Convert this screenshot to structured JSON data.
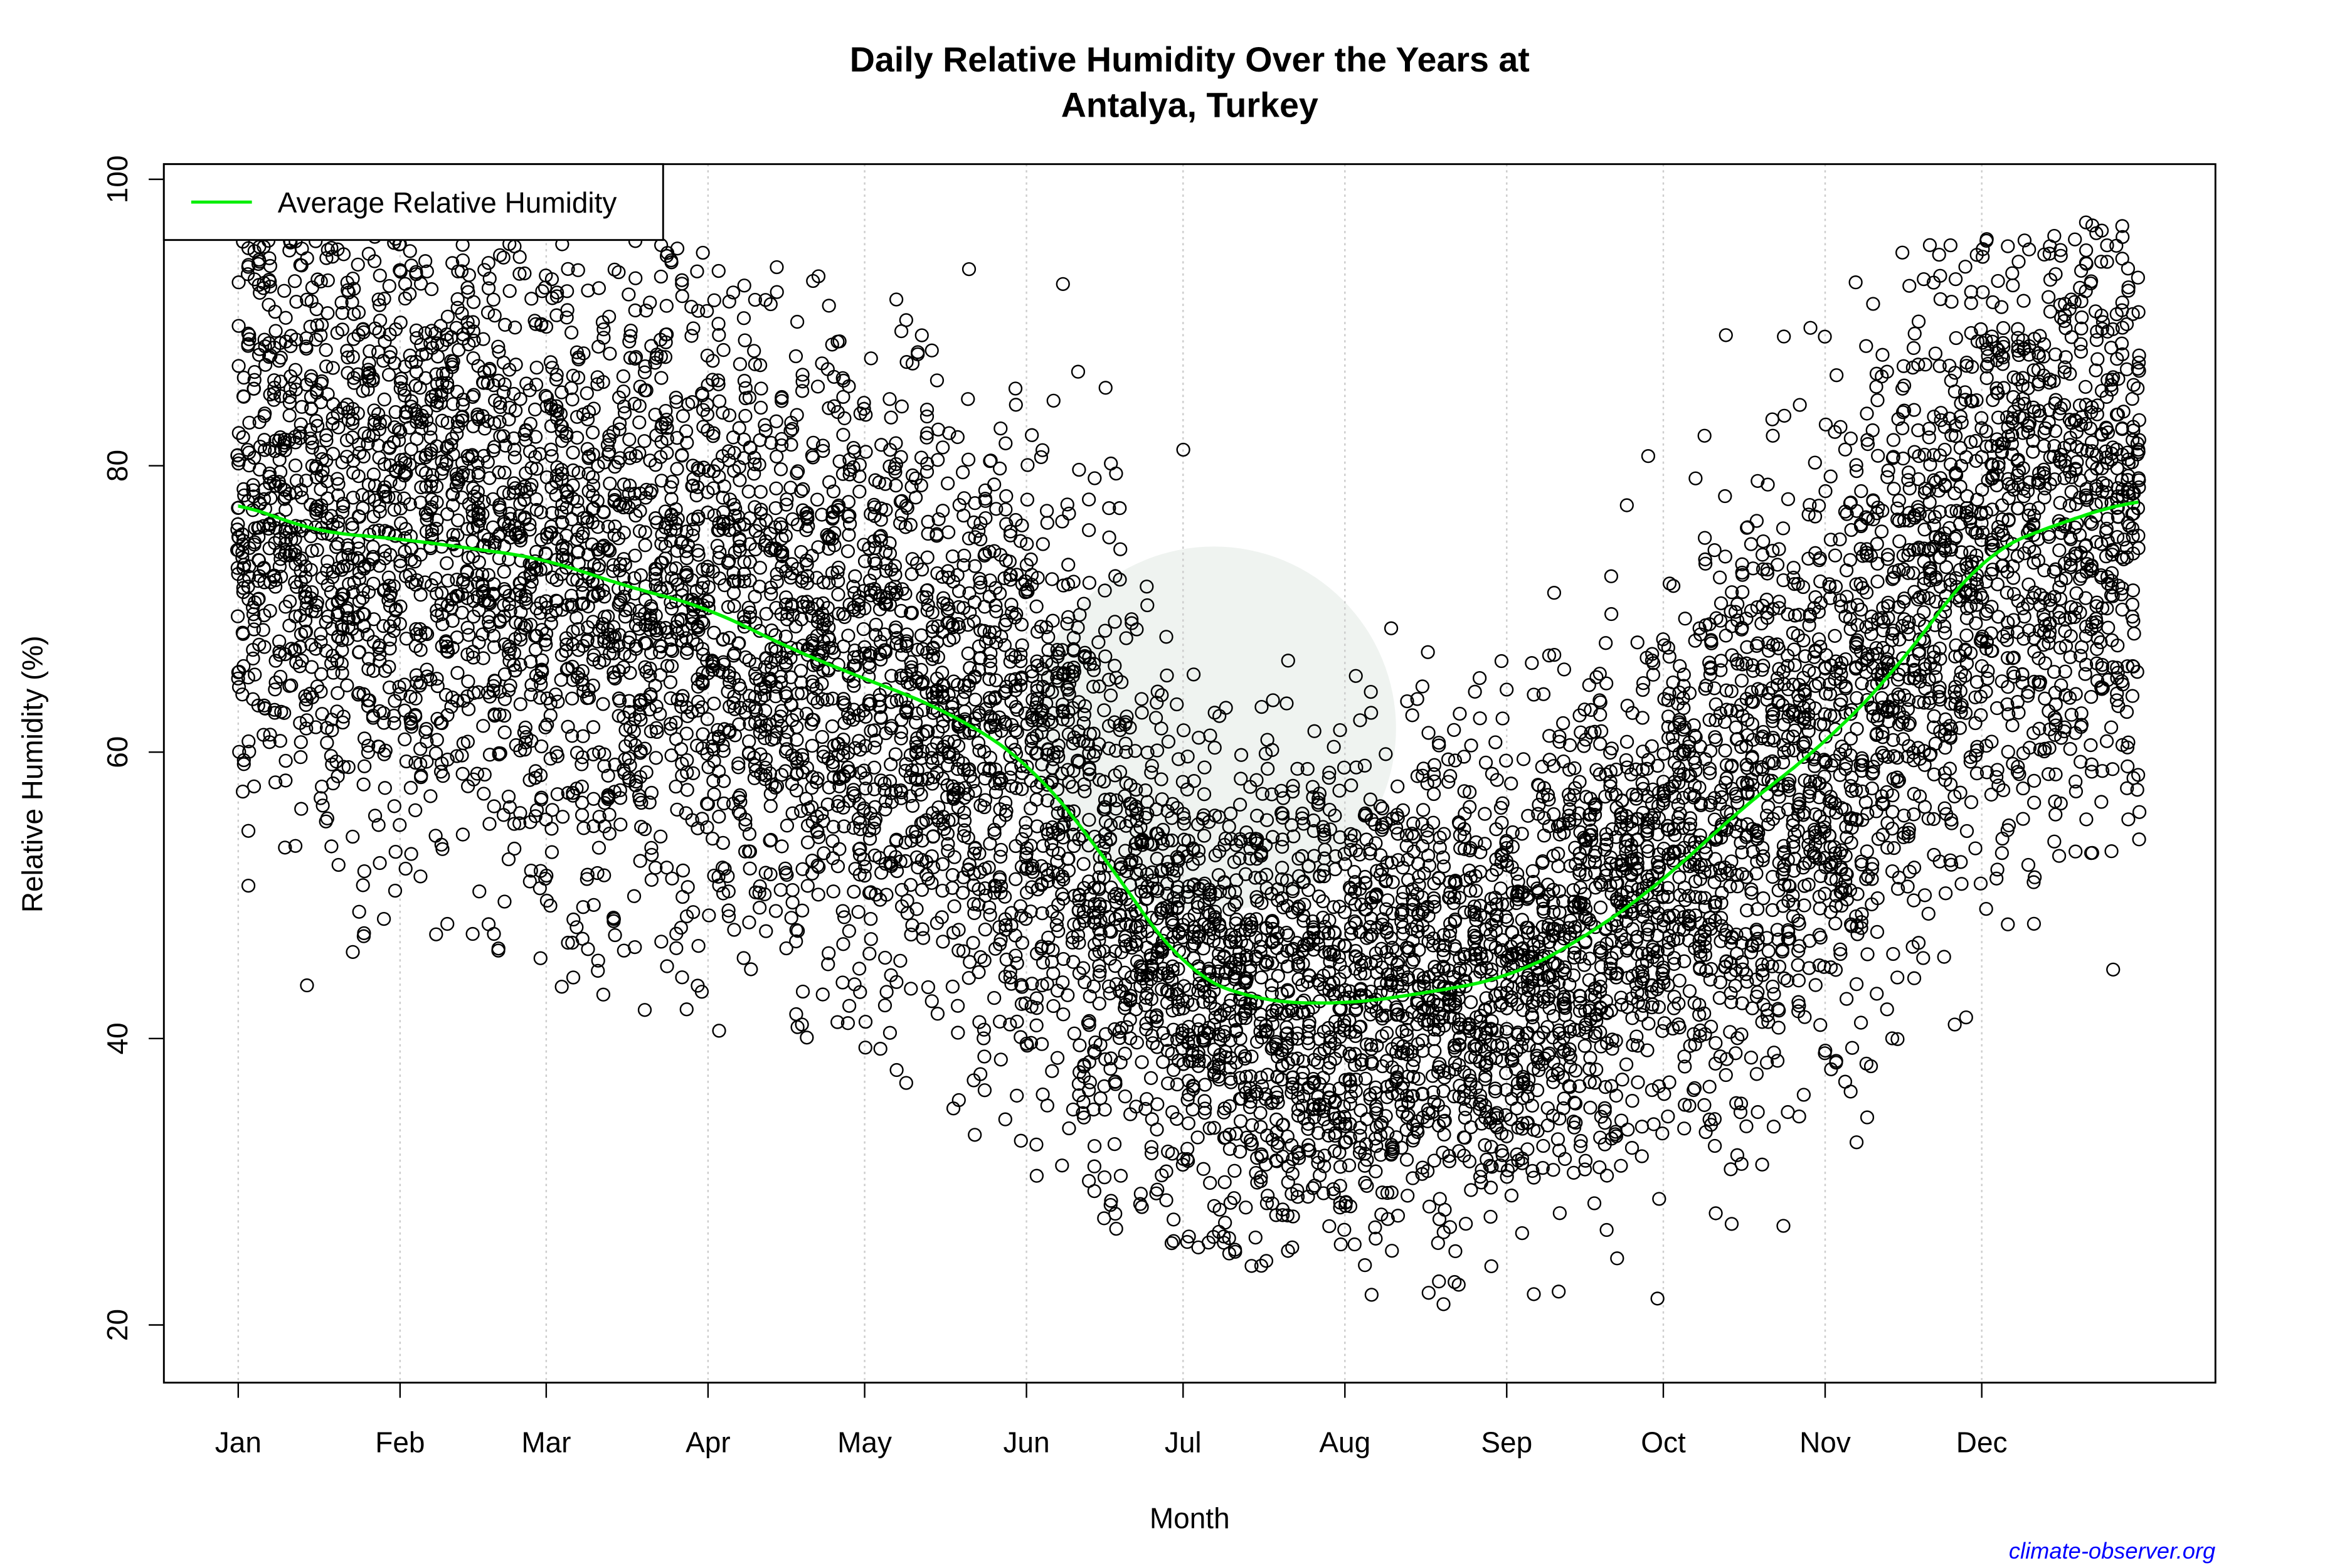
{
  "chart_data": {
    "type": "scatter",
    "title": "Daily Relative Humidity Over the Years at",
    "subtitle": "Antalya, Turkey",
    "xlabel": "Month",
    "ylabel": "Relative Humidity  (%)",
    "ylim": [
      20,
      100
    ],
    "yticks": [
      20,
      40,
      60,
      80,
      100
    ],
    "xticks": [
      {
        "label": "Jan",
        "day": 1
      },
      {
        "label": "Feb",
        "day": 32
      },
      {
        "label": "Mar",
        "day": 60
      },
      {
        "label": "Apr",
        "day": 91
      },
      {
        "label": "May",
        "day": 121
      },
      {
        "label": "Jun",
        "day": 152
      },
      {
        "label": "Jul",
        "day": 182
      },
      {
        "label": "Aug",
        "day": 213
      },
      {
        "label": "Sep",
        "day": 244
      },
      {
        "label": "Oct",
        "day": 274
      },
      {
        "label": "Nov",
        "day": 305
      },
      {
        "label": "Dec",
        "day": 335
      }
    ],
    "grid": "vertical dotted at month ticks",
    "legend": {
      "position": "top-left",
      "entries": [
        {
          "name": "Average Relative Humidity",
          "color": "#00ee00"
        }
      ]
    },
    "average_series": {
      "name": "Average Relative Humidity",
      "color": "#00ee00",
      "day": [
        1,
        15,
        32,
        60,
        74,
        91,
        105,
        121,
        135,
        152,
        166,
        182,
        196,
        213,
        227,
        244,
        258,
        274,
        288,
        305,
        319,
        335,
        349,
        365
      ],
      "value": [
        77.5,
        75.4,
        74.9,
        73.5,
        71.7,
        70.1,
        67.5,
        65.1,
        63.2,
        59.5,
        53.2,
        44.7,
        42.6,
        42.4,
        43.1,
        44.2,
        46.8,
        51.0,
        55.8,
        60.6,
        65.9,
        73.8,
        75.9,
        77.7
      ]
    },
    "scatter_monthly_range": {
      "months": [
        "Jan",
        "Feb",
        "Mar",
        "Apr",
        "May",
        "Jun",
        "Jul",
        "Aug",
        "Sep",
        "Oct",
        "Nov",
        "Dec"
      ],
      "min": [
        43,
        47,
        38,
        40,
        35,
        27,
        24,
        21,
        21,
        19,
        29,
        38
      ],
      "max": [
        96,
        96,
        96,
        94,
        94,
        94,
        78,
        72,
        81,
        90,
        95,
        97
      ]
    },
    "marker": "open circle",
    "marker_color": "#000000"
  },
  "footer": {
    "source": "climate-observer.org",
    "source_color": "#0000ff"
  }
}
